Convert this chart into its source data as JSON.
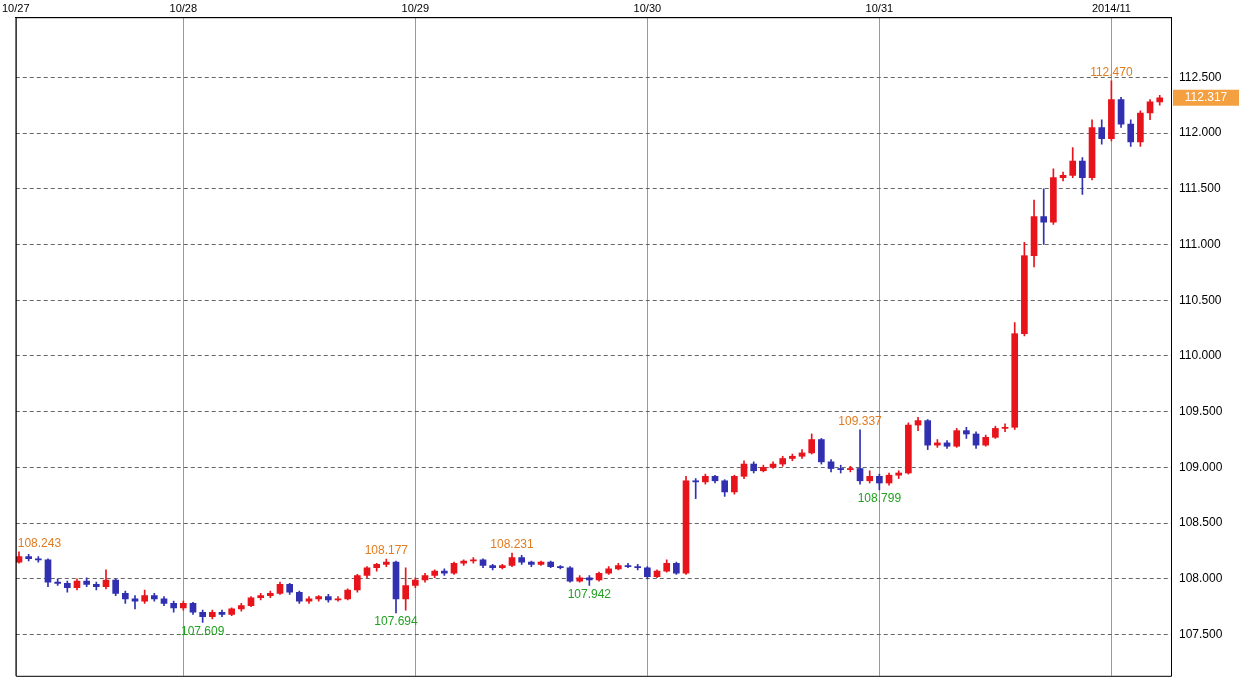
{
  "chart_data": {
    "type": "candlestick",
    "x": [
      "2014-10-27T07:00",
      "2014-10-27T08:00",
      "2014-10-27T09:00",
      "2014-10-27T10:00",
      "2014-10-27T11:00",
      "2014-10-27T12:00",
      "2014-10-27T13:00",
      "2014-10-27T14:00",
      "2014-10-27T15:00",
      "2014-10-27T16:00",
      "2014-10-27T17:00",
      "2014-10-27T18:00",
      "2014-10-27T19:00",
      "2014-10-27T20:00",
      "2014-10-27T21:00",
      "2014-10-27T22:00",
      "2014-10-27T23:00",
      "2014-10-28T00:00",
      "2014-10-28T01:00",
      "2014-10-28T02:00",
      "2014-10-28T03:00",
      "2014-10-28T04:00",
      "2014-10-28T05:00",
      "2014-10-28T06:00",
      "2014-10-28T07:00",
      "2014-10-28T08:00",
      "2014-10-28T09:00",
      "2014-10-28T10:00",
      "2014-10-28T11:00",
      "2014-10-28T12:00",
      "2014-10-28T13:00",
      "2014-10-28T14:00",
      "2014-10-28T15:00",
      "2014-10-28T16:00",
      "2014-10-28T17:00",
      "2014-10-28T18:00",
      "2014-10-28T19:00",
      "2014-10-28T20:00",
      "2014-10-28T21:00",
      "2014-10-28T22:00",
      "2014-10-28T23:00",
      "2014-10-29T00:00",
      "2014-10-29T01:00",
      "2014-10-29T02:00",
      "2014-10-29T03:00",
      "2014-10-29T04:00",
      "2014-10-29T05:00",
      "2014-10-29T06:00",
      "2014-10-29T07:00",
      "2014-10-29T08:00",
      "2014-10-29T09:00",
      "2014-10-29T10:00",
      "2014-10-29T11:00",
      "2014-10-29T12:00",
      "2014-10-29T13:00",
      "2014-10-29T14:00",
      "2014-10-29T15:00",
      "2014-10-29T16:00",
      "2014-10-29T17:00",
      "2014-10-29T18:00",
      "2014-10-29T19:00",
      "2014-10-29T20:00",
      "2014-10-29T21:00",
      "2014-10-29T22:00",
      "2014-10-29T23:00",
      "2014-10-30T00:00",
      "2014-10-30T01:00",
      "2014-10-30T02:00",
      "2014-10-30T03:00",
      "2014-10-30T04:00",
      "2014-10-30T05:00",
      "2014-10-30T06:00",
      "2014-10-30T07:00",
      "2014-10-30T08:00",
      "2014-10-30T09:00",
      "2014-10-30T10:00",
      "2014-10-30T11:00",
      "2014-10-30T12:00",
      "2014-10-30T13:00",
      "2014-10-30T14:00",
      "2014-10-30T15:00",
      "2014-10-30T16:00",
      "2014-10-30T17:00",
      "2014-10-30T18:00",
      "2014-10-30T19:00",
      "2014-10-30T20:00",
      "2014-10-30T21:00",
      "2014-10-30T22:00",
      "2014-10-30T23:00",
      "2014-10-31T00:00",
      "2014-10-31T01:00",
      "2014-10-31T02:00",
      "2014-10-31T03:00",
      "2014-10-31T04:00",
      "2014-10-31T05:00",
      "2014-10-31T06:00",
      "2014-10-31T07:00",
      "2014-10-31T08:00",
      "2014-10-31T09:00",
      "2014-10-31T10:00",
      "2014-10-31T11:00",
      "2014-10-31T12:00",
      "2014-10-31T13:00",
      "2014-10-31T14:00",
      "2014-10-31T15:00",
      "2014-10-31T16:00",
      "2014-10-31T17:00",
      "2014-10-31T18:00",
      "2014-10-31T19:00",
      "2014-10-31T20:00",
      "2014-10-31T21:00",
      "2014-10-31T22:00",
      "2014-10-31T23:00",
      "2014-11-01T00:00",
      "2014-11-01T01:00",
      "2014-11-01T02:00",
      "2014-11-01T03:00",
      "2014-11-01T04:00",
      "2014-11-01T05:00"
    ],
    "ohlc": [
      [
        108.15,
        108.243,
        108.14,
        108.2
      ],
      [
        108.2,
        108.22,
        108.16,
        108.18
      ],
      [
        108.18,
        108.2,
        108.15,
        108.17
      ],
      [
        108.17,
        108.18,
        107.93,
        107.97
      ],
      [
        107.97,
        108.0,
        107.94,
        107.96
      ],
      [
        107.96,
        107.98,
        107.88,
        107.92
      ],
      [
        107.92,
        108.0,
        107.9,
        107.98
      ],
      [
        107.98,
        108.01,
        107.93,
        107.95
      ],
      [
        107.95,
        107.97,
        107.9,
        107.93
      ],
      [
        107.93,
        108.08,
        107.91,
        107.99
      ],
      [
        107.99,
        108.0,
        107.85,
        107.87
      ],
      [
        107.87,
        107.89,
        107.78,
        107.82
      ],
      [
        107.82,
        107.85,
        107.73,
        107.8
      ],
      [
        107.8,
        107.9,
        107.78,
        107.85
      ],
      [
        107.85,
        107.87,
        107.8,
        107.82
      ],
      [
        107.82,
        107.84,
        107.76,
        107.78
      ],
      [
        107.78,
        107.8,
        107.7,
        107.74
      ],
      [
        107.74,
        107.8,
        107.72,
        107.78
      ],
      [
        107.78,
        107.79,
        107.68,
        107.7
      ],
      [
        107.7,
        107.72,
        107.609,
        107.66
      ],
      [
        107.66,
        107.72,
        107.64,
        107.7
      ],
      [
        107.7,
        107.72,
        107.66,
        107.68
      ],
      [
        107.68,
        107.74,
        107.67,
        107.73
      ],
      [
        107.73,
        107.78,
        107.71,
        107.76
      ],
      [
        107.76,
        107.84,
        107.75,
        107.83
      ],
      [
        107.83,
        107.87,
        107.81,
        107.85
      ],
      [
        107.85,
        107.89,
        107.83,
        107.87
      ],
      [
        107.87,
        107.97,
        107.86,
        107.95
      ],
      [
        107.95,
        107.96,
        107.86,
        107.88
      ],
      [
        107.88,
        107.89,
        107.78,
        107.8
      ],
      [
        107.8,
        107.84,
        107.78,
        107.82
      ],
      [
        107.82,
        107.85,
        107.8,
        107.84
      ],
      [
        107.84,
        107.86,
        107.79,
        107.81
      ],
      [
        107.81,
        107.84,
        107.8,
        107.82
      ],
      [
        107.82,
        107.91,
        107.81,
        107.9
      ],
      [
        107.9,
        108.04,
        107.88,
        108.03
      ],
      [
        108.03,
        108.11,
        108.01,
        108.1
      ],
      [
        108.1,
        108.14,
        108.07,
        108.13
      ],
      [
        108.13,
        108.177,
        108.11,
        108.15
      ],
      [
        108.15,
        108.16,
        107.694,
        107.82
      ],
      [
        107.82,
        108.1,
        107.72,
        107.94
      ],
      [
        107.94,
        108.01,
        107.92,
        107.99
      ],
      [
        107.99,
        108.05,
        107.97,
        108.03
      ],
      [
        108.03,
        108.08,
        108.01,
        108.07
      ],
      [
        108.07,
        108.09,
        108.03,
        108.05
      ],
      [
        108.05,
        108.15,
        108.04,
        108.14
      ],
      [
        108.14,
        108.17,
        108.12,
        108.16
      ],
      [
        108.16,
        108.19,
        108.14,
        108.17
      ],
      [
        108.17,
        108.18,
        108.1,
        108.12
      ],
      [
        108.12,
        108.13,
        108.08,
        108.1
      ],
      [
        108.1,
        108.13,
        108.09,
        108.12
      ],
      [
        108.12,
        108.231,
        108.11,
        108.19
      ],
      [
        108.19,
        108.21,
        108.13,
        108.15
      ],
      [
        108.15,
        108.16,
        108.11,
        108.13
      ],
      [
        108.13,
        108.16,
        108.12,
        108.15
      ],
      [
        108.15,
        108.16,
        108.1,
        108.11
      ],
      [
        108.11,
        108.12,
        108.09,
        108.1
      ],
      [
        108.1,
        108.11,
        107.97,
        107.98
      ],
      [
        107.98,
        108.03,
        107.97,
        108.01
      ],
      [
        108.01,
        108.03,
        107.942,
        107.99
      ],
      [
        107.99,
        108.06,
        107.98,
        108.05
      ],
      [
        108.05,
        108.11,
        108.04,
        108.09
      ],
      [
        108.09,
        108.14,
        108.08,
        108.12
      ],
      [
        108.12,
        108.14,
        108.1,
        108.11
      ],
      [
        108.11,
        108.13,
        108.08,
        108.1
      ],
      [
        108.1,
        108.11,
        108.0,
        108.02
      ],
      [
        108.02,
        108.08,
        108.01,
        108.07
      ],
      [
        108.07,
        108.17,
        108.06,
        108.14
      ],
      [
        108.14,
        108.15,
        108.04,
        108.05
      ],
      [
        108.05,
        108.92,
        108.04,
        108.88
      ],
      [
        108.88,
        108.9,
        108.72,
        108.87
      ],
      [
        108.87,
        108.94,
        108.85,
        108.92
      ],
      [
        108.92,
        108.93,
        108.86,
        108.88
      ],
      [
        108.88,
        108.89,
        108.74,
        108.78
      ],
      [
        108.78,
        108.93,
        108.76,
        108.92
      ],
      [
        108.92,
        109.06,
        108.9,
        109.03
      ],
      [
        109.03,
        109.05,
        108.95,
        108.97
      ],
      [
        108.97,
        109.02,
        108.96,
        109.0
      ],
      [
        109.0,
        109.05,
        108.99,
        109.03
      ],
      [
        109.03,
        109.1,
        109.01,
        109.08
      ],
      [
        109.08,
        109.12,
        109.06,
        109.1
      ],
      [
        109.1,
        109.16,
        109.08,
        109.13
      ],
      [
        109.13,
        109.3,
        109.12,
        109.25
      ],
      [
        109.25,
        109.26,
        109.03,
        109.05
      ],
      [
        109.05,
        109.07,
        108.96,
        108.99
      ],
      [
        108.99,
        109.02,
        108.95,
        108.98
      ],
      [
        108.98,
        109.01,
        108.96,
        108.99
      ],
      [
        108.99,
        109.337,
        108.85,
        108.88
      ],
      [
        108.88,
        108.97,
        108.86,
        108.92
      ],
      [
        108.92,
        108.94,
        108.799,
        108.86
      ],
      [
        108.86,
        108.95,
        108.84,
        108.93
      ],
      [
        108.93,
        108.97,
        108.9,
        108.95
      ],
      [
        108.95,
        109.4,
        108.94,
        109.38
      ],
      [
        109.38,
        109.45,
        109.33,
        109.42
      ],
      [
        109.42,
        109.43,
        109.16,
        109.2
      ],
      [
        109.2,
        109.25,
        109.18,
        109.22
      ],
      [
        109.22,
        109.24,
        109.17,
        109.19
      ],
      [
        109.19,
        109.35,
        109.18,
        109.33
      ],
      [
        109.33,
        109.36,
        109.26,
        109.3
      ],
      [
        109.3,
        109.32,
        109.17,
        109.2
      ],
      [
        109.2,
        109.29,
        109.19,
        109.27
      ],
      [
        109.27,
        109.37,
        109.26,
        109.35
      ],
      [
        109.35,
        109.39,
        109.32,
        109.36
      ],
      [
        109.36,
        110.3,
        109.34,
        110.2
      ],
      [
        110.2,
        111.02,
        110.18,
        110.9
      ],
      [
        110.9,
        111.4,
        110.8,
        111.25
      ],
      [
        111.25,
        111.5,
        111.0,
        111.2
      ],
      [
        111.2,
        111.68,
        111.18,
        111.6
      ],
      [
        111.6,
        111.65,
        111.57,
        111.62
      ],
      [
        111.62,
        111.87,
        111.6,
        111.75
      ],
      [
        111.75,
        111.78,
        111.45,
        111.6
      ],
      [
        111.6,
        112.12,
        111.58,
        112.05
      ],
      [
        112.05,
        112.12,
        111.9,
        111.95
      ],
      [
        111.95,
        112.47,
        111.93,
        112.3
      ],
      [
        112.3,
        112.32,
        112.05,
        112.08
      ],
      [
        112.08,
        112.12,
        111.88,
        111.92
      ],
      [
        111.92,
        112.2,
        111.88,
        112.18
      ],
      [
        112.18,
        112.3,
        112.12,
        112.28
      ],
      [
        112.28,
        112.34,
        112.25,
        112.317
      ]
    ],
    "colors": [
      "#e8141c",
      "#3030b0",
      "#3030b0",
      "#3030b0",
      "#3030b0",
      "#3030b0",
      "#e8141c",
      "#3030b0",
      "#3030b0",
      "#e8141c",
      "#3030b0",
      "#3030b0",
      "#3030b0",
      "#e8141c",
      "#3030b0",
      "#3030b0",
      "#3030b0",
      "#e8141c",
      "#3030b0",
      "#3030b0",
      "#e8141c",
      "#3030b0",
      "#e8141c",
      "#e8141c",
      "#e8141c",
      "#e8141c",
      "#e8141c",
      "#e8141c",
      "#3030b0",
      "#3030b0",
      "#e8141c",
      "#e8141c",
      "#3030b0",
      "#e8141c",
      "#e8141c",
      "#e8141c",
      "#e8141c",
      "#e8141c",
      "#e8141c",
      "#3030b0",
      "#e8141c",
      "#e8141c",
      "#e8141c",
      "#e8141c",
      "#3030b0",
      "#e8141c",
      "#e8141c",
      "#e8141c",
      "#3030b0",
      "#3030b0",
      "#e8141c",
      "#e8141c",
      "#3030b0",
      "#3030b0",
      "#e8141c",
      "#3030b0",
      "#3030b0",
      "#3030b0",
      "#e8141c",
      "#3030b0",
      "#e8141c",
      "#e8141c",
      "#e8141c",
      "#3030b0",
      "#3030b0",
      "#3030b0",
      "#e8141c",
      "#e8141c",
      "#3030b0",
      "#e8141c",
      "#3030b0",
      "#e8141c",
      "#3030b0",
      "#3030b0",
      "#e8141c",
      "#e8141c",
      "#3030b0",
      "#e8141c",
      "#e8141c",
      "#e8141c",
      "#e8141c",
      "#e8141c",
      "#e8141c",
      "#3030b0",
      "#3030b0",
      "#3030b0",
      "#e8141c",
      "#3030b0",
      "#e8141c",
      "#3030b0",
      "#e8141c",
      "#e8141c",
      "#e8141c",
      "#e8141c",
      "#3030b0",
      "#e8141c",
      "#3030b0",
      "#e8141c",
      "#3030b0",
      "#3030b0",
      "#e8141c",
      "#e8141c",
      "#e8141c",
      "#e8141c",
      "#e8141c",
      "#e8141c",
      "#3030b0",
      "#e8141c",
      "#e8141c",
      "#e8141c",
      "#3030b0",
      "#e8141c",
      "#3030b0",
      "#e8141c",
      "#3030b0",
      "#3030b0",
      "#e8141c",
      "#e8141c",
      "#e8141c"
    ],
    "xlim": [
      "2014-10-27T06:40",
      "2014-11-01T06:10"
    ],
    "xticks": [
      {
        "value": "2014-10-27T06:40",
        "label": "10/27"
      },
      {
        "value": "2014-10-28T00:00",
        "label": "10/28"
      },
      {
        "value": "2014-10-29T00:00",
        "label": "10/29"
      },
      {
        "value": "2014-10-30T00:00",
        "label": "10/30"
      },
      {
        "value": "2014-10-31T00:00",
        "label": "10/31"
      },
      {
        "value": "2014-11-01T00:00",
        "label": "2014/11"
      }
    ],
    "ylim": [
      107.13,
      113.04
    ],
    "yticks": [
      {
        "value": 107.5,
        "label": "107.500"
      },
      {
        "value": 108,
        "label": "108.000"
      },
      {
        "value": 108.5,
        "label": "108.500"
      },
      {
        "value": 109,
        "label": "109.000"
      },
      {
        "value": 109.5,
        "label": "109.500"
      },
      {
        "value": 110,
        "label": "110.000"
      },
      {
        "value": 110.5,
        "label": "110.500"
      },
      {
        "value": 111,
        "label": "111.000"
      },
      {
        "value": 111.5,
        "label": "111.500"
      },
      {
        "value": 112,
        "label": "112.000"
      },
      {
        "value": 112.5,
        "label": "112.500"
      }
    ],
    "grid": true,
    "annotations": [
      {
        "text": "108.243",
        "x": "2014-10-27T07:00",
        "y": 108.243
      },
      {
        "text": "107.609",
        "x": "2014-10-28T02:00",
        "y": 107.609
      },
      {
        "text": "108.177",
        "x": "2014-10-28T21:00",
        "y": 108.177
      },
      {
        "text": "107.694",
        "x": "2014-10-28T22:00",
        "y": 107.694
      },
      {
        "text": "108.231",
        "x": "2014-10-29T10:00",
        "y": 108.231
      },
      {
        "text": "107.942",
        "x": "2014-10-29T18:00",
        "y": 107.942
      },
      {
        "text": "109.337",
        "x": "2014-10-30T22:00",
        "y": 109.337
      },
      {
        "text": "108.799",
        "x": "2014-10-31T00:00",
        "y": 108.799
      },
      {
        "text": "112.470",
        "x": "2014-11-01T00:00",
        "y": 112.47
      },
      {
        "text": "112.317",
        "x": "2014-11-01T05:00",
        "y": 112.317
      }
    ]
  }
}
